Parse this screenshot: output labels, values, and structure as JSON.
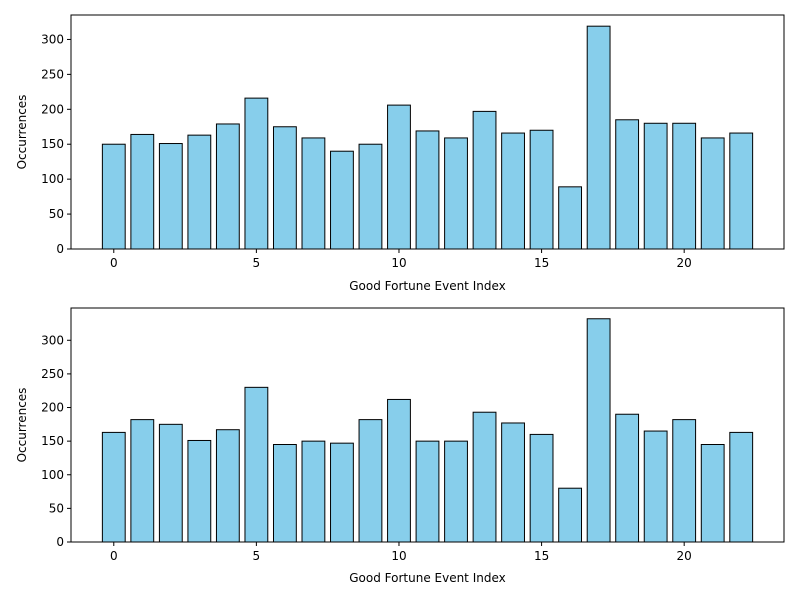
{
  "chart_data": [
    {
      "type": "bar",
      "xlabel": "Good Fortune Event Index",
      "ylabel": "Occurrences",
      "x": [
        0,
        1,
        2,
        3,
        4,
        5,
        6,
        7,
        8,
        9,
        10,
        11,
        12,
        13,
        14,
        15,
        16,
        17,
        18,
        19,
        20,
        21,
        22
      ],
      "values": [
        150,
        164,
        151,
        163,
        179,
        216,
        175,
        159,
        140,
        150,
        206,
        169,
        159,
        197,
        166,
        170,
        89,
        319,
        185,
        180,
        180,
        159,
        166
      ],
      "xlim": [
        -1.5,
        23.5
      ],
      "ylim": [
        0,
        335
      ],
      "xticks": [
        0,
        5,
        10,
        15,
        20
      ],
      "yticks": [
        0,
        50,
        100,
        150,
        200,
        250,
        300
      ],
      "bar_color": "#87ceeb",
      "edge_color": "#000000",
      "grid": false
    },
    {
      "type": "bar",
      "xlabel": "Good Fortune Event Index",
      "ylabel": "Occurrences",
      "x": [
        0,
        1,
        2,
        3,
        4,
        5,
        6,
        7,
        8,
        9,
        10,
        11,
        12,
        13,
        14,
        15,
        16,
        17,
        18,
        19,
        20,
        21,
        22
      ],
      "values": [
        163,
        182,
        175,
        151,
        167,
        230,
        145,
        150,
        147,
        182,
        212,
        150,
        150,
        193,
        177,
        160,
        80,
        332,
        190,
        165,
        182,
        145,
        163
      ],
      "xlim": [
        -1.5,
        23.5
      ],
      "ylim": [
        0,
        348
      ],
      "xticks": [
        0,
        5,
        10,
        15,
        20
      ],
      "yticks": [
        0,
        50,
        100,
        150,
        200,
        250,
        300
      ],
      "bar_color": "#87ceeb",
      "edge_color": "#000000",
      "grid": false
    }
  ]
}
